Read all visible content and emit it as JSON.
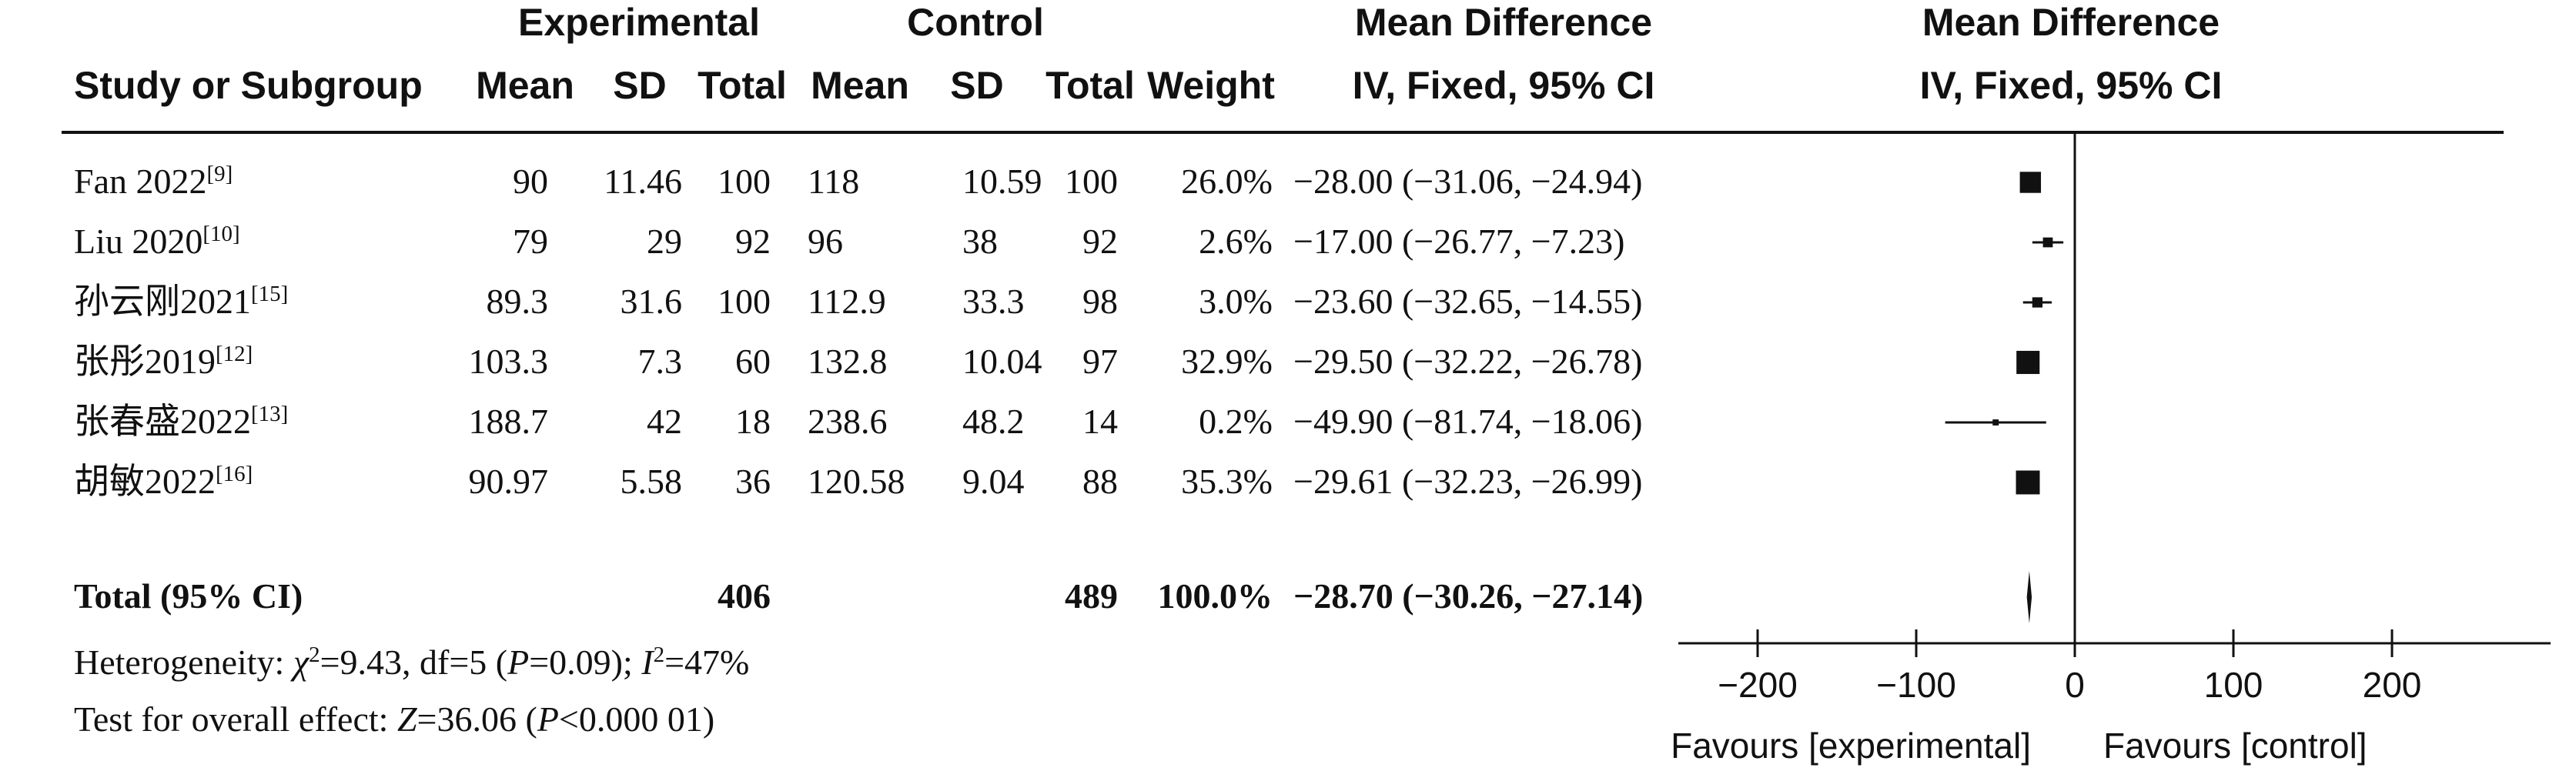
{
  "headers": {
    "group_experimental": "Experimental",
    "group_control": "Control",
    "group_md_table": "Mean Difference",
    "group_md_plot": "Mean Difference",
    "study": "Study or Subgroup",
    "exp_mean": "Mean",
    "exp_sd": "SD",
    "exp_total": "Total",
    "ctl_mean": "Mean",
    "ctl_sd": "SD",
    "ctl_total": "Total",
    "weight": "Weight",
    "md_method": "IV, Fixed, 95% CI",
    "plot_method": "IV, Fixed, 95% CI"
  },
  "studies": [
    {
      "name": "Fan 2022",
      "ref": "[9]",
      "exp_mean": "90",
      "exp_sd": "11.46",
      "exp_total": "100",
      "ctl_mean": "118",
      "ctl_sd": "10.59",
      "ctl_total": "100",
      "weight": "26.0%",
      "ci": "−28.00 (−31.06, −24.94)"
    },
    {
      "name": "Liu 2020",
      "ref": "[10]",
      "exp_mean": "79",
      "exp_sd": "29",
      "exp_total": "92",
      "ctl_mean": "96",
      "ctl_sd": "38",
      "ctl_total": "92",
      "weight": "2.6%",
      "ci": "−17.00 (−26.77, −7.23)"
    },
    {
      "name": "孙云刚2021",
      "ref": "[15]",
      "exp_mean": "89.3",
      "exp_sd": "31.6",
      "exp_total": "100",
      "ctl_mean": "112.9",
      "ctl_sd": "33.3",
      "ctl_total": "98",
      "weight": "3.0%",
      "ci": "−23.60 (−32.65, −14.55)"
    },
    {
      "name": "张彤2019",
      "ref": "[12]",
      "exp_mean": "103.3",
      "exp_sd": "7.3",
      "exp_total": "60",
      "ctl_mean": "132.8",
      "ctl_sd": "10.04",
      "ctl_total": "97",
      "weight": "32.9%",
      "ci": "−29.50 (−32.22, −26.78)"
    },
    {
      "name": "张春盛2022",
      "ref": "[13]",
      "exp_mean": "188.7",
      "exp_sd": "42",
      "exp_total": "18",
      "ctl_mean": "238.6",
      "ctl_sd": "48.2",
      "ctl_total": "14",
      "weight": "0.2%",
      "ci": "−49.90 (−81.74, −18.06)"
    },
    {
      "name": "胡敏2022",
      "ref": "[16]",
      "exp_mean": "90.97",
      "exp_sd": "5.58",
      "exp_total": "36",
      "ctl_mean": "120.58",
      "ctl_sd": "9.04",
      "ctl_total": "88",
      "weight": "35.3%",
      "ci": "−29.61 (−32.23, −26.99)"
    }
  ],
  "total": {
    "label": "Total (95% CI)",
    "exp_total": "406",
    "ctl_total": "489",
    "weight": "100.0%",
    "ci": "−28.70 (−30.26, −27.14)"
  },
  "footer": {
    "heterogeneity": {
      "prefix": "Heterogeneity: ",
      "chi": "χ",
      "chi_sup": "2",
      "chi_val": "=9.43, df=5 (",
      "p_sym": "P",
      "p_val": "=0.09); ",
      "i_sym": "I",
      "i_sup": "2",
      "i_val": "=47%"
    },
    "overall": {
      "prefix": "Test for overall effect: ",
      "z_sym": "Z",
      "z_val": "=36.06 (",
      "p_sym": "P",
      "p_val": "<0.000 01)"
    }
  },
  "chart_data": {
    "type": "forest",
    "xlim": [
      -250,
      300
    ],
    "ticks": [
      -200,
      -100,
      0,
      100,
      200
    ],
    "tick_labels": [
      "−200",
      "−100",
      "0",
      "100",
      "200"
    ],
    "favours_left": "Favours [experimental]",
    "favours_right": "Favours [control]",
    "studies": [
      {
        "md": -28.0,
        "lo": -31.06,
        "hi": -24.94,
        "weight": 26.0
      },
      {
        "md": -17.0,
        "lo": -26.77,
        "hi": -7.23,
        "weight": 2.6
      },
      {
        "md": -23.6,
        "lo": -32.65,
        "hi": -14.55,
        "weight": 3.0
      },
      {
        "md": -29.5,
        "lo": -32.22,
        "hi": -26.78,
        "weight": 32.9
      },
      {
        "md": -49.9,
        "lo": -81.74,
        "hi": -18.06,
        "weight": 0.2
      },
      {
        "md": -29.61,
        "lo": -32.23,
        "hi": -26.99,
        "weight": 35.3
      }
    ],
    "pooled": {
      "md": -28.7,
      "lo": -30.26,
      "hi": -27.14
    }
  }
}
